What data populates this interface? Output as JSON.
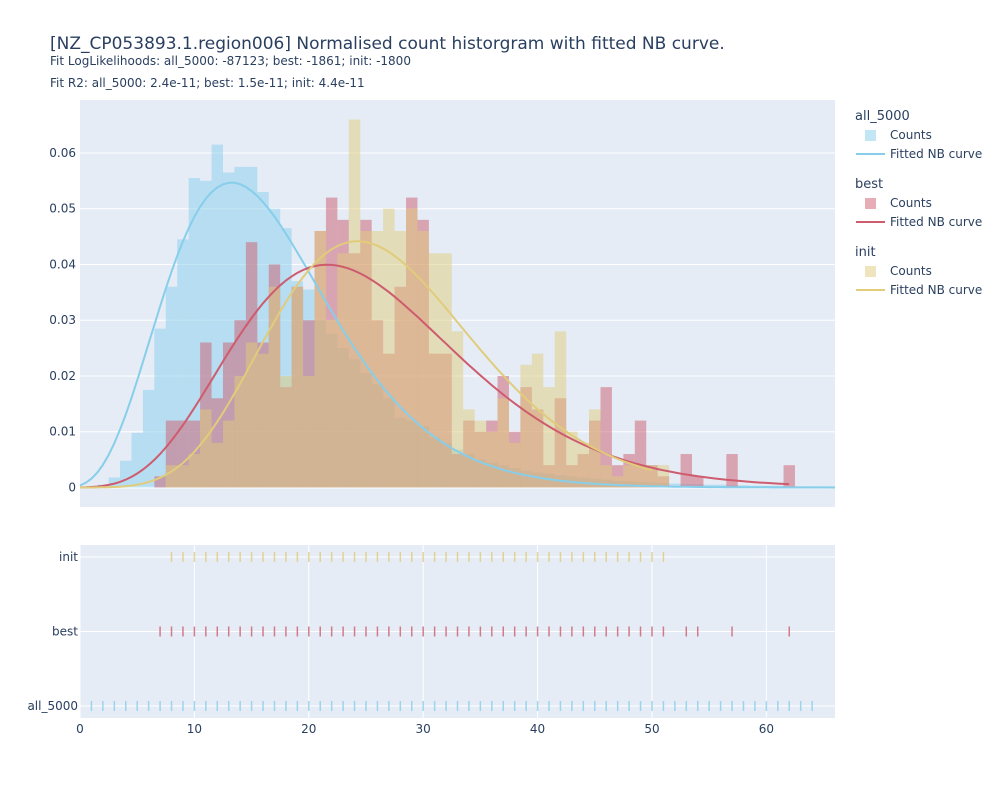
{
  "header": {
    "title": "[NZ_CP053893.1.region006] Normalised count historgram with fitted NB curve.",
    "subtitle1": "Fit LogLikelihoods: all_5000: -87123; best: -1861; init: -1800",
    "subtitle2": "Fit R2: all_5000: 2.4e-11; best: 1.5e-11; init: 4.4e-11"
  },
  "legend": {
    "groups": [
      {
        "title": "all_5000",
        "counts_label": "Counts",
        "curve_label": "Fitted NB curve",
        "color": "#87ceeb"
      },
      {
        "title": "best",
        "counts_label": "Counts",
        "curve_label": "Fitted NB curve",
        "color": "#cd5c6e"
      },
      {
        "title": "init",
        "counts_label": "Counts",
        "curve_label": "Fitted NB curve",
        "color": "#e0cc7a"
      }
    ]
  },
  "chart_data": [
    {
      "type": "bar",
      "title": "[NZ_CP053893.1.region006] Normalised count historgram with fitted NB curve.",
      "xlim": [
        0,
        66
      ],
      "ylim": [
        -0.0035,
        0.0695
      ],
      "yticks": [
        0,
        0.01,
        0.02,
        0.03,
        0.04,
        0.05,
        0.06
      ],
      "ytick_labels": [
        "0",
        "0.01",
        "0.02",
        "0.03",
        "0.04",
        "0.05",
        "0.06"
      ],
      "grid": true,
      "legend_position": "right",
      "histograms": [
        {
          "name": "all_5000",
          "color": "#87ceeb",
          "x": [
            1,
            2,
            3,
            4,
            5,
            6,
            7,
            8,
            9,
            10,
            11,
            12,
            13,
            14,
            15,
            16,
            17,
            18,
            19,
            20,
            21,
            22,
            23,
            24,
            25,
            26,
            27,
            28,
            29,
            30,
            31,
            32,
            33,
            34,
            35,
            36,
            37,
            38,
            39,
            40,
            41,
            42,
            43,
            44,
            45,
            46,
            47,
            48,
            49,
            50,
            51,
            52,
            53,
            54,
            55,
            56,
            57,
            58,
            59,
            60,
            61,
            62,
            63,
            64
          ],
          "values": [
            0,
            0.0005,
            0.0018,
            0.0048,
            0.0098,
            0.0175,
            0.0285,
            0.036,
            0.0445,
            0.0555,
            0.055,
            0.0615,
            0.0565,
            0.0575,
            0.0575,
            0.053,
            0.05,
            0.0465,
            0.037,
            0.0355,
            0.03,
            0.0275,
            0.025,
            0.023,
            0.0205,
            0.0185,
            0.016,
            0.0125,
            0.012,
            0.011,
            0.009,
            0.008,
            0.0068,
            0.006,
            0.005,
            0.0045,
            0.004,
            0.0035,
            0.003,
            0.0027,
            0.0025,
            0.0022,
            0.002,
            0.0018,
            0.0016,
            0.0014,
            0.0012,
            0.0011,
            0.001,
            0.0009,
            0.0008,
            0.0007,
            0.0006,
            0.0006,
            0.0005,
            0.0005,
            0.0004,
            0.0004,
            0.0003,
            0.0003,
            0.0003,
            0.0002,
            0.0002,
            0.0002
          ]
        },
        {
          "name": "best",
          "color": "#cd5c6e",
          "x": [
            7,
            8,
            9,
            10,
            11,
            12,
            13,
            14,
            15,
            16,
            17,
            18,
            19,
            20,
            21,
            22,
            23,
            24,
            25,
            26,
            27,
            28,
            29,
            30,
            31,
            32,
            33,
            34,
            35,
            36,
            37,
            38,
            39,
            40,
            41,
            42,
            43,
            44,
            45,
            46,
            47,
            48,
            49,
            50,
            51,
            53,
            54,
            57,
            62
          ],
          "values": [
            0.002,
            0.012,
            0.012,
            0.012,
            0.026,
            0.016,
            0.026,
            0.03,
            0.044,
            0.026,
            0.04,
            0.018,
            0.036,
            0.03,
            0.046,
            0.052,
            0.048,
            0.042,
            0.048,
            0.03,
            0.024,
            0.036,
            0.052,
            0.048,
            0.024,
            0.024,
            0.006,
            0.012,
            0.01,
            0.012,
            0.02,
            0.01,
            0.018,
            0.014,
            0.004,
            0.016,
            0.004,
            0.006,
            0.012,
            0.018,
            0.004,
            0.006,
            0.012,
            0.004,
            0.002,
            0.006,
            0.002,
            0.006,
            0.004
          ]
        },
        {
          "name": "init",
          "color": "#e0cc7a",
          "x": [
            8,
            9,
            10,
            11,
            12,
            13,
            14,
            15,
            16,
            17,
            18,
            19,
            20,
            21,
            22,
            23,
            24,
            25,
            26,
            27,
            28,
            29,
            30,
            31,
            32,
            33,
            34,
            35,
            36,
            37,
            38,
            39,
            40,
            41,
            42,
            43,
            44,
            45,
            46,
            47,
            48,
            49,
            50,
            51
          ],
          "values": [
            0.004,
            0.004,
            0.006,
            0.014,
            0.008,
            0.012,
            0.02,
            0.026,
            0.024,
            0.036,
            0.02,
            0.036,
            0.02,
            0.046,
            0.03,
            0.042,
            0.066,
            0.046,
            0.046,
            0.05,
            0.046,
            0.05,
            0.046,
            0.042,
            0.042,
            0.028,
            0.014,
            0.012,
            0.01,
            0.016,
            0.008,
            0.022,
            0.024,
            0.018,
            0.028,
            0.01,
            0.008,
            0.014,
            0.004,
            0.002,
            0.004,
            0.004,
            0.004,
            0.004
          ]
        }
      ],
      "curves": [
        {
          "name": "all_5000",
          "color": "#87ceeb",
          "type": "negative_binomial",
          "mean": 16.5,
          "r": 6.0,
          "x_range": [
            0,
            66
          ]
        },
        {
          "name": "best",
          "color": "#cd5c6e",
          "type": "negative_binomial",
          "mean": 25.5,
          "r": 7.5,
          "x_range": [
            0,
            62
          ]
        },
        {
          "name": "init",
          "color": "#e0cc7a",
          "type": "negative_binomial",
          "mean": 27.0,
          "r": 12.0,
          "x_range": [
            0,
            50
          ]
        }
      ]
    },
    {
      "type": "scatter",
      "xlim": [
        0,
        66
      ],
      "xticks": [
        0,
        10,
        20,
        30,
        40,
        50,
        60
      ],
      "xtick_labels": [
        "0",
        "10",
        "20",
        "30",
        "40",
        "50",
        "60"
      ],
      "categories": [
        "init",
        "best",
        "all_5000"
      ],
      "grid": true,
      "rugs": [
        {
          "name": "init",
          "color": "#e0cc7a",
          "x": [
            8,
            9,
            10,
            11,
            12,
            13,
            14,
            15,
            16,
            17,
            18,
            19,
            20,
            21,
            22,
            23,
            24,
            25,
            26,
            27,
            28,
            29,
            30,
            31,
            32,
            33,
            34,
            35,
            36,
            37,
            38,
            39,
            40,
            41,
            42,
            43,
            44,
            45,
            46,
            47,
            48,
            49,
            50,
            51
          ]
        },
        {
          "name": "best",
          "color": "#cd5c6e",
          "x": [
            7,
            8,
            9,
            10,
            11,
            12,
            13,
            14,
            15,
            16,
            17,
            18,
            19,
            20,
            21,
            22,
            23,
            24,
            25,
            26,
            27,
            28,
            29,
            30,
            31,
            32,
            33,
            34,
            35,
            36,
            37,
            38,
            39,
            40,
            41,
            42,
            43,
            44,
            45,
            46,
            47,
            48,
            49,
            50,
            51,
            53,
            54,
            57,
            62
          ]
        },
        {
          "name": "all_5000",
          "color": "#87ceeb",
          "x": [
            1,
            2,
            3,
            4,
            5,
            6,
            7,
            8,
            9,
            10,
            11,
            12,
            13,
            14,
            15,
            16,
            17,
            18,
            19,
            20,
            21,
            22,
            23,
            24,
            25,
            26,
            27,
            28,
            29,
            30,
            31,
            32,
            33,
            34,
            35,
            36,
            37,
            38,
            39,
            40,
            41,
            42,
            43,
            44,
            45,
            46,
            47,
            48,
            49,
            50,
            51,
            52,
            53,
            54,
            55,
            56,
            57,
            58,
            59,
            60,
            61,
            62,
            63,
            64
          ]
        }
      ]
    }
  ]
}
